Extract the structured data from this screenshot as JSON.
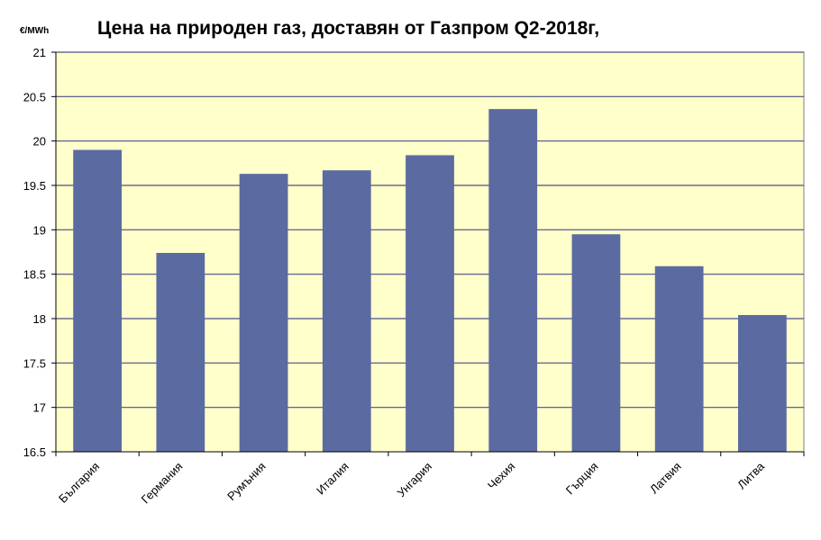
{
  "chart_data": {
    "type": "bar",
    "title": "Цена на природен газ, доставян от Газпром  Q2-2018г,",
    "unit_label": "€/MWh",
    "categories": [
      "България",
      "Германия",
      "Румъния",
      "Италия",
      "Унгария",
      "Чехия",
      "Гърция",
      "Латвия",
      "Литва"
    ],
    "values": [
      19.9,
      18.74,
      19.63,
      19.67,
      19.84,
      20.36,
      18.95,
      18.59,
      18.04
    ],
    "ylim": [
      16.5,
      21
    ],
    "yticks": [
      "16.5",
      "17",
      "17.5",
      "18",
      "18.5",
      "19",
      "19.5",
      "20",
      "20.5",
      "21"
    ],
    "grid": true,
    "colors": {
      "bar": "#5b6aa0",
      "plot_bg": "#ffffcc",
      "grid": "#4a4f86"
    }
  }
}
